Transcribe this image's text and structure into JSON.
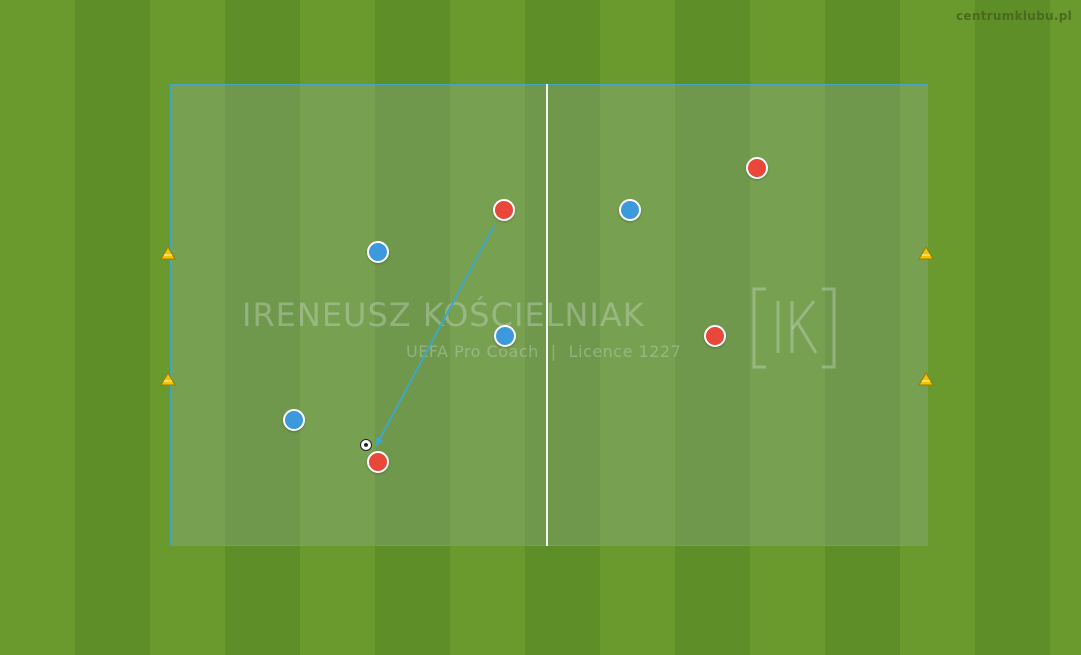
{
  "site_label": "centrumklubu.pl",
  "watermark": {
    "name": "IRENEUSZ KOŚCIELNIAK",
    "title": "UEFA Pro Coach",
    "separator": "|",
    "licence": "Licence 1227",
    "monogram_icon": "ik-monogram-icon"
  },
  "colors": {
    "grass_light": "#6a9a2d",
    "grass_dark": "#5e8e27",
    "field_border": "#3fa6c4",
    "team_red": "#e8473a",
    "team_blue": "#3b99dc",
    "cone": "#f2c400",
    "pass_line": "#3fa6c4"
  },
  "players": [
    {
      "team": "red",
      "icon": "player-red-icon"
    },
    {
      "team": "red",
      "icon": "player-red-icon"
    },
    {
      "team": "red",
      "icon": "player-red-icon"
    },
    {
      "team": "red",
      "icon": "player-red-icon"
    },
    {
      "team": "blue",
      "icon": "player-blue-icon"
    },
    {
      "team": "blue",
      "icon": "player-blue-icon"
    },
    {
      "team": "blue",
      "icon": "player-blue-icon"
    },
    {
      "team": "blue",
      "icon": "player-blue-icon"
    }
  ],
  "cones": [
    {
      "icon": "cone-icon"
    },
    {
      "icon": "cone-icon"
    },
    {
      "icon": "cone-icon"
    },
    {
      "icon": "cone-icon"
    }
  ],
  "ball": {
    "icon": "ball-icon"
  },
  "pass": {
    "icon": "pass-arrow-icon"
  }
}
